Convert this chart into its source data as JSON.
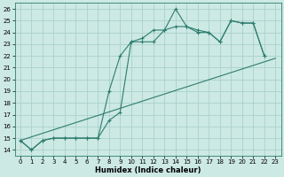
{
  "xlabel": "Humidex (Indice chaleur)",
  "background_color": "#cce9e4",
  "grid_color": "#aad0cb",
  "line_color": "#2e7d6e",
  "xlim": [
    -0.5,
    23.5
  ],
  "ylim": [
    13.5,
    26.5
  ],
  "xticks": [
    0,
    1,
    2,
    3,
    4,
    5,
    6,
    7,
    8,
    9,
    10,
    11,
    12,
    13,
    14,
    15,
    16,
    17,
    18,
    19,
    20,
    21,
    22,
    23
  ],
  "yticks": [
    14,
    15,
    16,
    17,
    18,
    19,
    20,
    21,
    22,
    23,
    24,
    25,
    26
  ],
  "line1_x": [
    0,
    1,
    2,
    3,
    4,
    5,
    6,
    7,
    8,
    9,
    10,
    11,
    12,
    13,
    14,
    15,
    16,
    17,
    18,
    19,
    20,
    21,
    22
  ],
  "line1_y": [
    14.8,
    14.0,
    14.8,
    15.0,
    15.0,
    15.0,
    15.0,
    15.0,
    19.0,
    22.0,
    23.2,
    23.5,
    24.2,
    24.2,
    26.0,
    24.5,
    24.0,
    24.0,
    23.2,
    25.0,
    24.8,
    24.8,
    22.0
  ],
  "line2_x": [
    0,
    1,
    2,
    3,
    4,
    5,
    6,
    7,
    8,
    9,
    10,
    11,
    12,
    13,
    14,
    15,
    16,
    17,
    18,
    19,
    20,
    21,
    22
  ],
  "line2_y": [
    14.8,
    14.0,
    14.8,
    15.0,
    15.0,
    15.0,
    15.0,
    15.0,
    16.5,
    17.2,
    23.2,
    23.2,
    23.2,
    24.2,
    24.5,
    24.5,
    24.2,
    24.0,
    23.2,
    25.0,
    24.8,
    24.8,
    22.0
  ],
  "line3_x": [
    0,
    23
  ],
  "line3_y": [
    14.8,
    21.8
  ]
}
